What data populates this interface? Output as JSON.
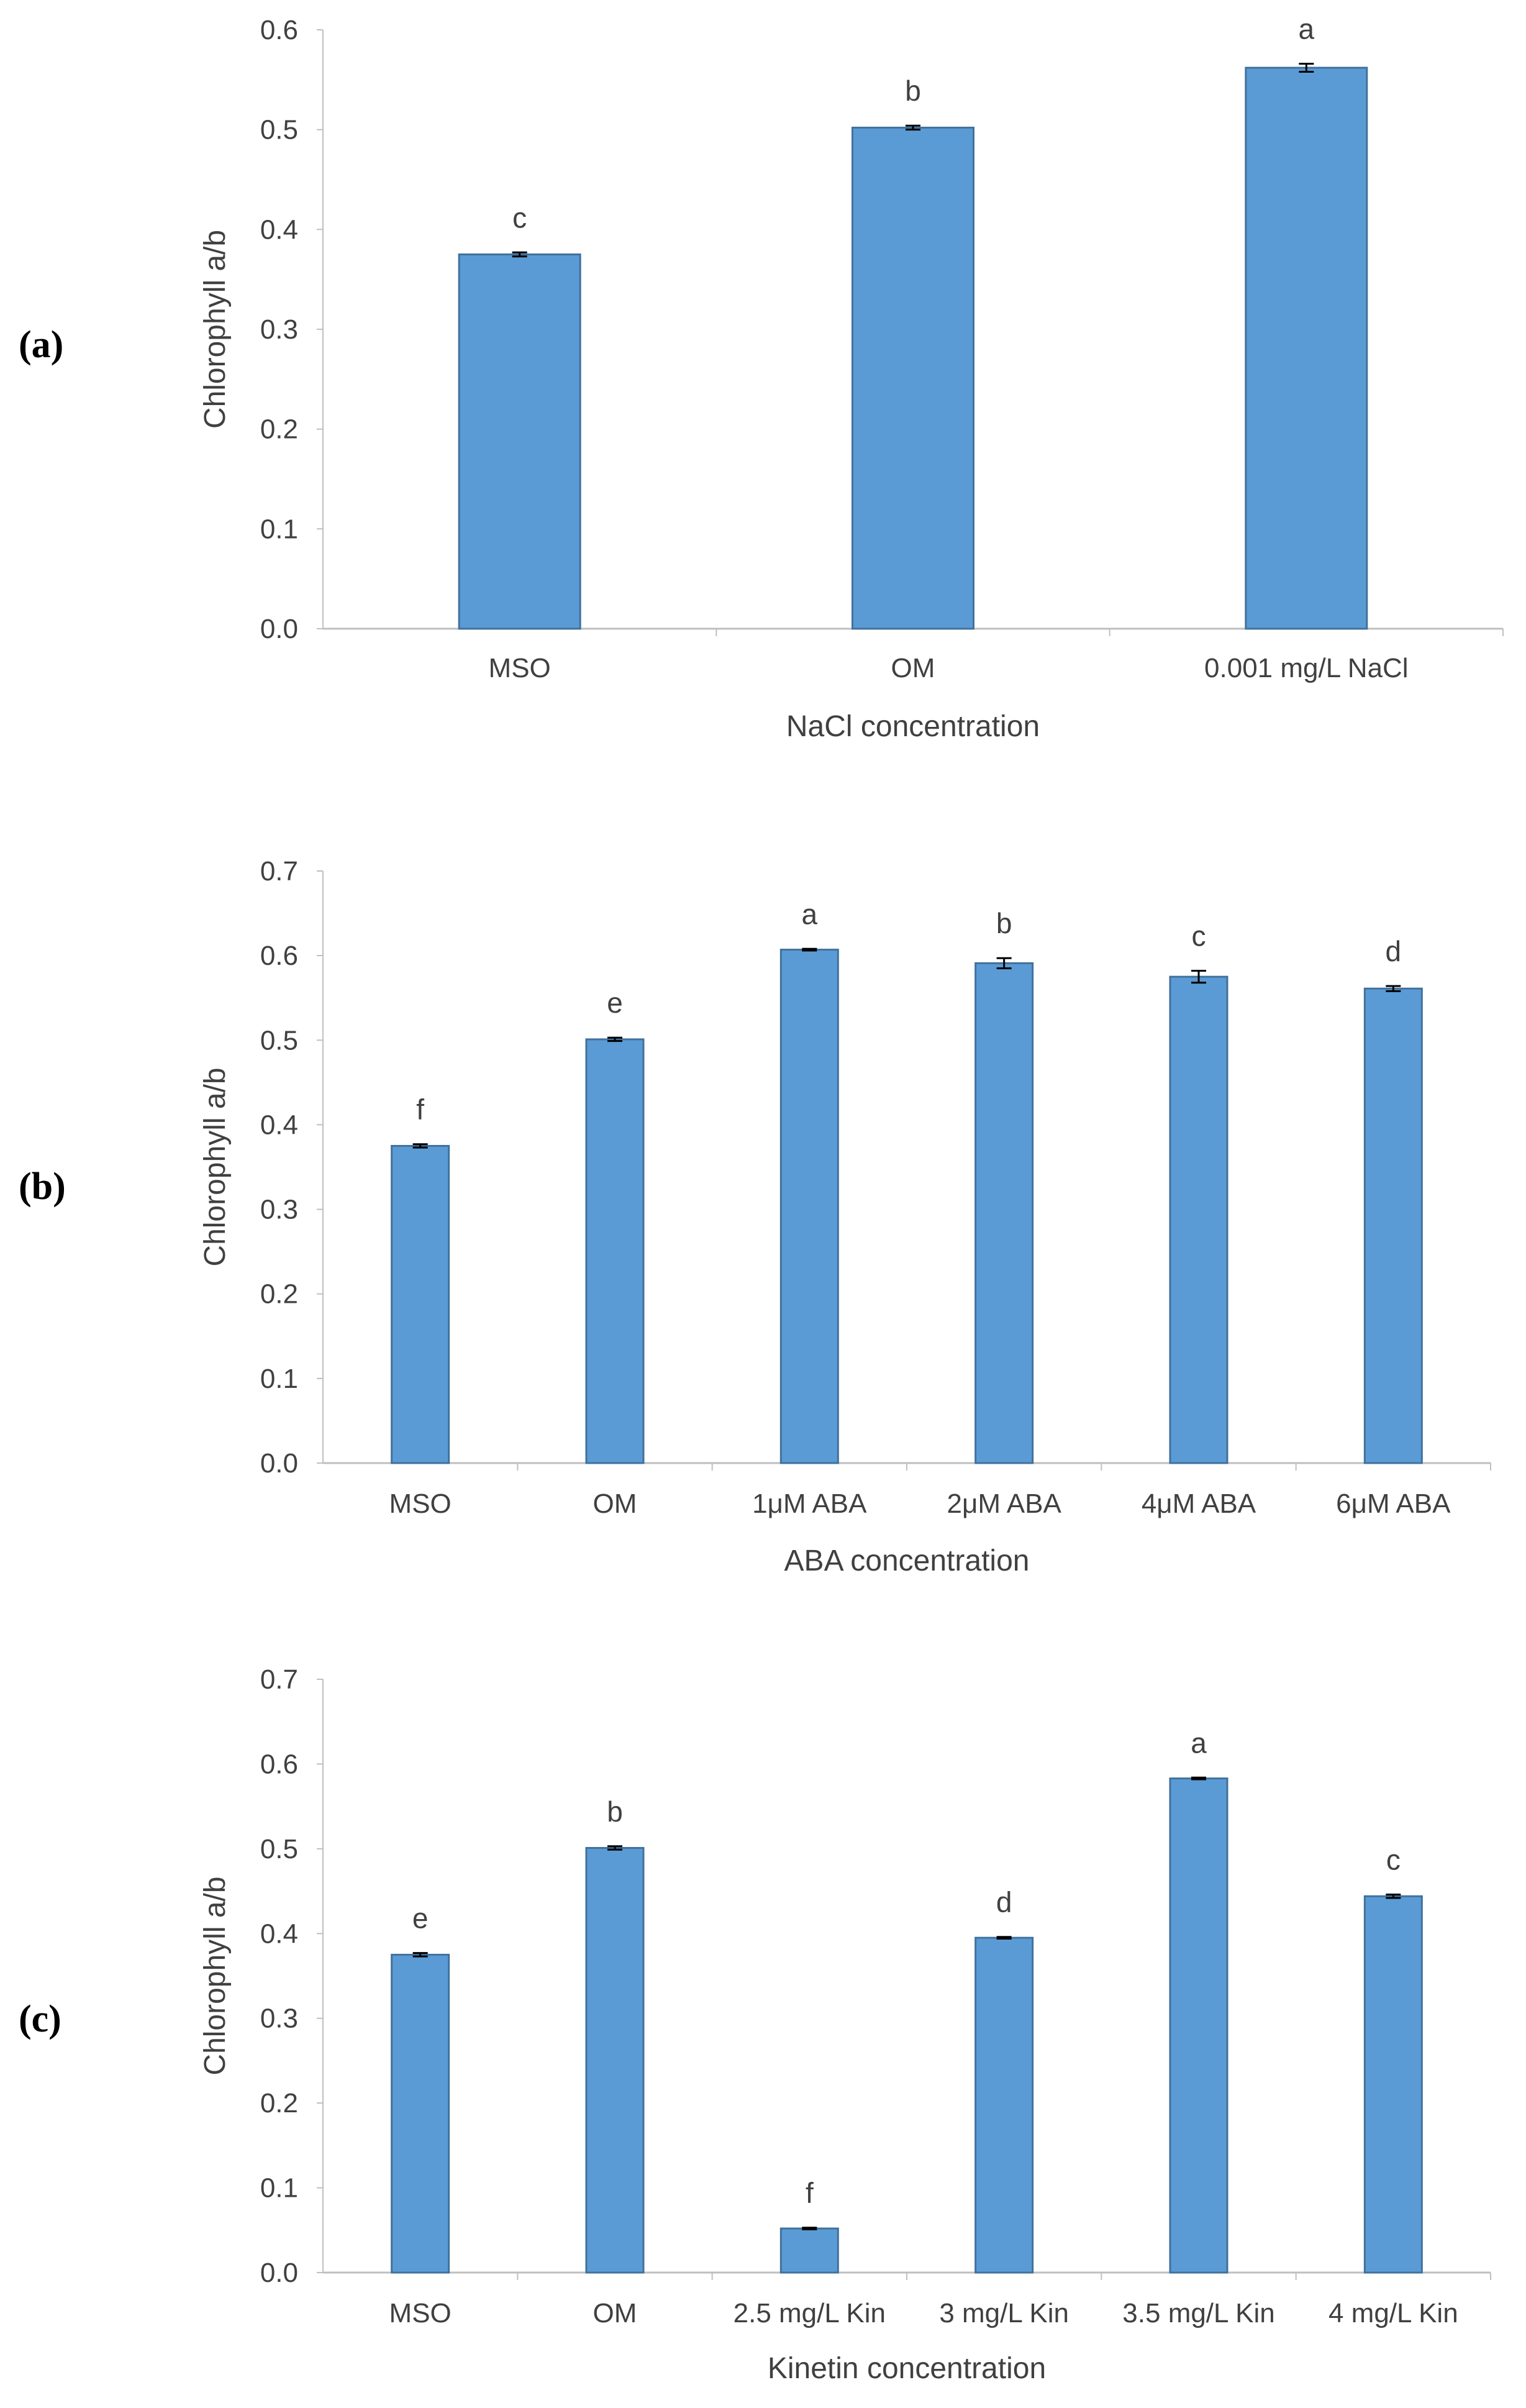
{
  "figure": {
    "bar_color": "#5B9BD5",
    "bar_edge_color": "#41719C",
    "axis_color": "#BFBFBF",
    "text_color": "#404040"
  },
  "chart_data": [
    {
      "panel_label": "(a)",
      "type": "bar",
      "xlabel": "NaCl concentration",
      "ylabel": "Chlorophyll a/b",
      "ylim": [
        0,
        0.6
      ],
      "yticks": [
        "0.0",
        "0.1",
        "0.2",
        "0.3",
        "0.4",
        "0.5",
        "0.6"
      ],
      "categories": [
        "MSO",
        "OM",
        "0.001 mg/L NaCl"
      ],
      "values": [
        0.375,
        0.502,
        0.562
      ],
      "errors": [
        0.002,
        0.002,
        0.004
      ],
      "significance": [
        "c",
        "b",
        "a"
      ]
    },
    {
      "panel_label": "(b)",
      "type": "bar",
      "xlabel": "ABA concentration",
      "ylabel": "Chlorophyll a/b",
      "ylim": [
        0,
        0.7
      ],
      "yticks": [
        "0.0",
        "0.1",
        "0.2",
        "0.3",
        "0.4",
        "0.5",
        "0.6",
        "0.7"
      ],
      "categories": [
        "MSO",
        "OM",
        "1μM ABA",
        "2μM ABA",
        "4μM ABA",
        "6μM ABA"
      ],
      "values": [
        0.375,
        0.501,
        0.607,
        0.591,
        0.575,
        0.561
      ],
      "errors": [
        0.002,
        0.002,
        0.001,
        0.006,
        0.007,
        0.003
      ],
      "significance": [
        "f",
        "e",
        "a",
        "b",
        "c",
        "d"
      ]
    },
    {
      "panel_label": "(c)",
      "type": "bar",
      "xlabel": "Kinetin concentration",
      "ylabel": "Chlorophyll a/b",
      "ylim": [
        0,
        0.7
      ],
      "yticks": [
        "0.0",
        "0.1",
        "0.2",
        "0.3",
        "0.4",
        "0.5",
        "0.6",
        "0.7"
      ],
      "categories": [
        "MSO",
        "OM",
        "2.5 mg/L Kin",
        "3 mg/L Kin",
        "3.5 mg/L Kin",
        "4 mg/L Kin"
      ],
      "values": [
        0.375,
        0.501,
        0.052,
        0.395,
        0.583,
        0.444
      ],
      "errors": [
        0.002,
        0.002,
        0.001,
        0.001,
        0.001,
        0.002
      ],
      "significance": [
        "e",
        "b",
        "f",
        "d",
        "a",
        "c"
      ]
    }
  ]
}
